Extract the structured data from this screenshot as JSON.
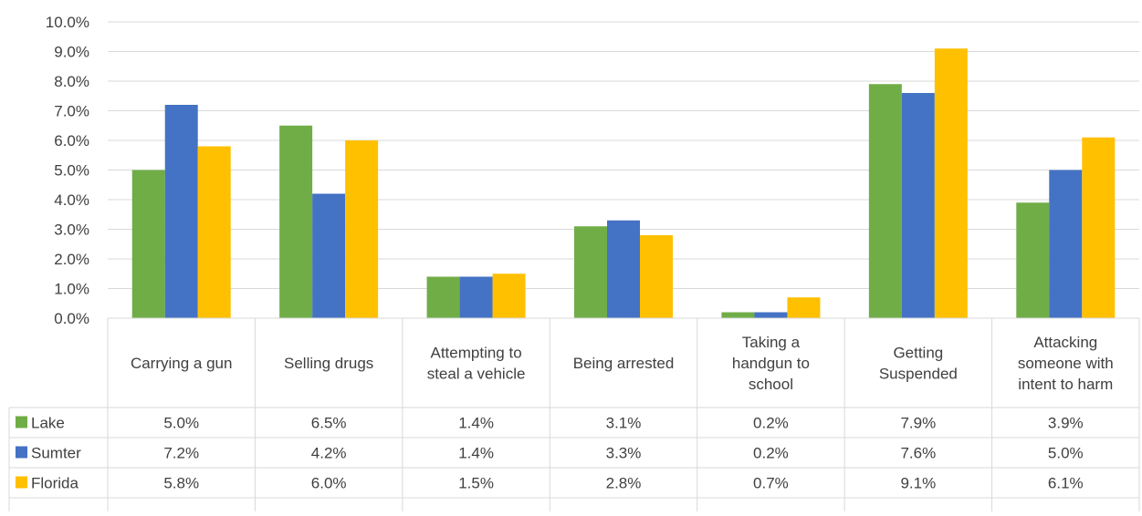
{
  "chart_data": {
    "type": "bar",
    "categories": [
      [
        "Carrying a gun"
      ],
      [
        "Selling drugs"
      ],
      [
        "Attempting to",
        "steal a vehicle"
      ],
      [
        "Being arrested"
      ],
      [
        "Taking a",
        "handgun to",
        "school"
      ],
      [
        "Getting",
        "Suspended"
      ],
      [
        "Attacking",
        "someone with",
        "intent to harm"
      ]
    ],
    "series": [
      {
        "name": "Lake",
        "color": "#70AD47",
        "values": [
          5.0,
          6.5,
          1.4,
          3.1,
          0.2,
          7.9,
          3.9
        ],
        "labels": [
          "5.0%",
          "6.5%",
          "1.4%",
          "3.1%",
          "0.2%",
          "7.9%",
          "3.9%"
        ]
      },
      {
        "name": "Sumter",
        "color": "#4472C4",
        "values": [
          7.2,
          4.2,
          1.4,
          3.3,
          0.2,
          7.6,
          5.0
        ],
        "labels": [
          "7.2%",
          "4.2%",
          "1.4%",
          "3.3%",
          "0.2%",
          "7.6%",
          "5.0%"
        ]
      },
      {
        "name": "Florida",
        "color": "#FFC000",
        "values": [
          5.8,
          6.0,
          1.5,
          2.8,
          0.7,
          9.1,
          6.1
        ],
        "labels": [
          "5.8%",
          "6.0%",
          "1.5%",
          "2.8%",
          "0.7%",
          "9.1%",
          "6.1%"
        ]
      }
    ],
    "yticks": [
      "0.0%",
      "1.0%",
      "2.0%",
      "3.0%",
      "4.0%",
      "5.0%",
      "6.0%",
      "7.0%",
      "8.0%",
      "9.0%",
      "10.0%"
    ],
    "ylim": [
      0,
      10
    ],
    "grid": true,
    "legend": "data-table"
  }
}
